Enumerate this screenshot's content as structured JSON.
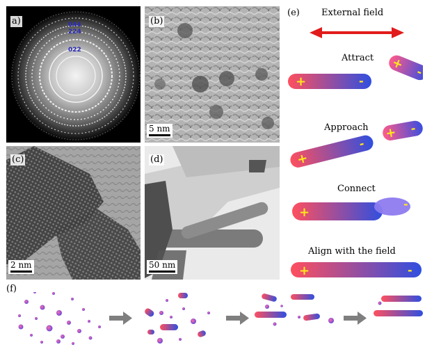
{
  "panels": {
    "a": {
      "label": "a)",
      "rings": [
        "044",
        "224",
        "022"
      ]
    },
    "b": {
      "label": "(b)",
      "scale": "5 nm"
    },
    "c": {
      "label": "(c)",
      "scale": "2 nm"
    },
    "d": {
      "label": "(d)",
      "scale": "50 nm"
    },
    "e": {
      "label": "(e)",
      "title": "External field",
      "steps": [
        "Attract",
        "Approach",
        "Connect",
        "Align with the field"
      ],
      "plus": "+",
      "minus": "-"
    },
    "f": {
      "label": "(f)"
    }
  },
  "colors": {
    "arrow": "#e11b1b",
    "rod_start": "#ff4f5e",
    "rod_end": "#2f4fe0",
    "sign": "#ffe81a",
    "process_arrow": "#7f7f7f"
  }
}
